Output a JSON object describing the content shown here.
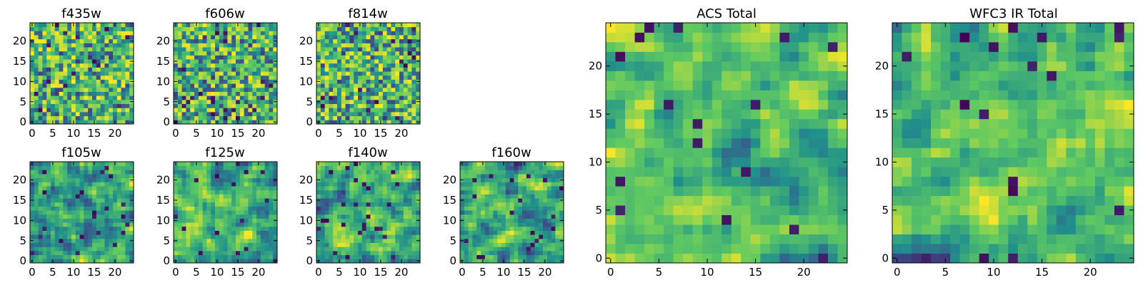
{
  "chart_data": [
    {
      "type": "heatmap",
      "title": "f435w",
      "x_ticks": [
        0,
        5,
        10,
        15,
        20
      ],
      "y_ticks": [
        0,
        5,
        10,
        15,
        20
      ],
      "xlim": [
        -0.5,
        24.5
      ],
      "ylim": [
        -0.5,
        24.5
      ],
      "rows": 25,
      "cols": 25,
      "pixel_value_range": [
        0,
        1
      ],
      "seed": 11,
      "style": "noise",
      "colormap": "viridis"
    },
    {
      "type": "heatmap",
      "title": "f606w",
      "x_ticks": [
        0,
        5,
        10,
        15,
        20
      ],
      "y_ticks": [
        0,
        5,
        10,
        15,
        20
      ],
      "xlim": [
        -0.5,
        24.5
      ],
      "ylim": [
        -0.5,
        24.5
      ],
      "rows": 25,
      "cols": 25,
      "pixel_value_range": [
        0,
        1
      ],
      "seed": 23,
      "style": "noise",
      "colormap": "viridis"
    },
    {
      "type": "heatmap",
      "title": "f814w",
      "x_ticks": [
        0,
        5,
        10,
        15,
        20
      ],
      "y_ticks": [
        0,
        5,
        10,
        15,
        20
      ],
      "xlim": [
        -0.5,
        24.5
      ],
      "ylim": [
        -0.5,
        24.5
      ],
      "rows": 25,
      "cols": 25,
      "pixel_value_range": [
        0,
        1
      ],
      "seed": 37,
      "style": "noise",
      "colormap": "viridis"
    },
    {
      "type": "heatmap",
      "title": "f105w",
      "x_ticks": [
        0,
        5,
        10,
        15,
        20
      ],
      "y_ticks": [
        0,
        5,
        10,
        15,
        20
      ],
      "xlim": [
        -0.5,
        24.5
      ],
      "ylim": [
        -0.5,
        24.5
      ],
      "rows": 25,
      "cols": 25,
      "pixel_value_range": [
        0,
        1
      ],
      "seed": 41,
      "style": "smooth",
      "colormap": "viridis"
    },
    {
      "type": "heatmap",
      "title": "f125w",
      "x_ticks": [
        0,
        5,
        10,
        15,
        20
      ],
      "y_ticks": [
        0,
        5,
        10,
        15,
        20
      ],
      "xlim": [
        -0.5,
        24.5
      ],
      "ylim": [
        -0.5,
        24.5
      ],
      "rows": 25,
      "cols": 25,
      "pixel_value_range": [
        0,
        1
      ],
      "seed": 53,
      "style": "smooth",
      "colormap": "viridis"
    },
    {
      "type": "heatmap",
      "title": "f140w",
      "x_ticks": [
        0,
        5,
        10,
        15,
        20
      ],
      "y_ticks": [
        0,
        5,
        10,
        15,
        20
      ],
      "xlim": [
        -0.5,
        24.5
      ],
      "ylim": [
        -0.5,
        24.5
      ],
      "rows": 25,
      "cols": 25,
      "pixel_value_range": [
        0,
        1
      ],
      "seed": 67,
      "style": "smooth",
      "colormap": "viridis"
    },
    {
      "type": "heatmap",
      "title": "f160w",
      "x_ticks": [
        0,
        5,
        10,
        15,
        20
      ],
      "y_ticks": [
        0,
        5,
        10,
        15,
        20
      ],
      "xlim": [
        -0.5,
        24.5
      ],
      "ylim": [
        -0.5,
        24.5
      ],
      "rows": 25,
      "cols": 25,
      "pixel_value_range": [
        0,
        1
      ],
      "seed": 71,
      "style": "smooth",
      "colormap": "viridis"
    },
    {
      "type": "heatmap",
      "title": "ACS Total",
      "x_ticks": [
        0,
        5,
        10,
        15,
        20
      ],
      "y_ticks": [
        0,
        5,
        10,
        15,
        20
      ],
      "xlim": [
        -0.5,
        24.5
      ],
      "ylim": [
        -0.5,
        24.5
      ],
      "rows": 25,
      "cols": 25,
      "pixel_value_range": [
        0,
        1
      ],
      "seed": 83,
      "style": "blocky",
      "colormap": "viridis"
    },
    {
      "type": "heatmap",
      "title": "WFC3 IR Total",
      "x_ticks": [
        0,
        5,
        10,
        15,
        20
      ],
      "y_ticks": [
        0,
        5,
        10,
        15,
        20
      ],
      "xlim": [
        -0.5,
        24.5
      ],
      "ylim": [
        -0.5,
        24.5
      ],
      "rows": 25,
      "cols": 25,
      "pixel_value_range": [
        0,
        1
      ],
      "seed": 97,
      "style": "blocky",
      "colormap": "viridis"
    }
  ]
}
